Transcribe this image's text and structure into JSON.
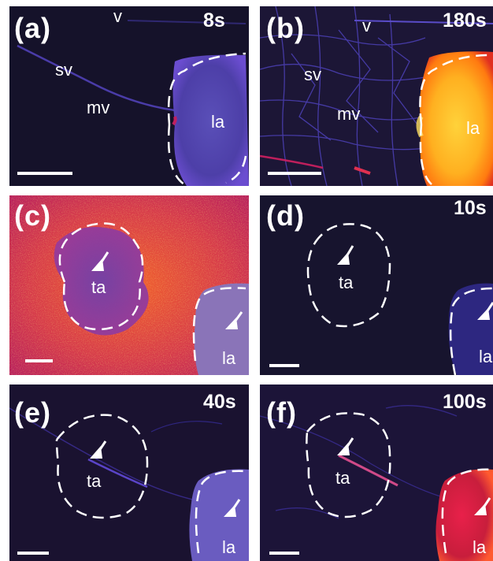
{
  "panels": {
    "a": {
      "label": "(a)",
      "time": "8s",
      "v": "v",
      "sv": "sv",
      "mv": "mv",
      "la": "la"
    },
    "b": {
      "label": "(b)",
      "time": "180s",
      "v": "v",
      "sv": "sv",
      "mv": "mv",
      "la": "la"
    },
    "c": {
      "label": "(c)",
      "ta": "ta",
      "la": "la"
    },
    "d": {
      "label": "(d)",
      "time": "10s",
      "ta": "ta",
      "la": "la"
    },
    "e": {
      "label": "(e)",
      "time": "40s",
      "ta": "ta",
      "la": "la"
    },
    "f": {
      "label": "(f)",
      "time": "100s",
      "ta": "ta",
      "la": "la"
    }
  },
  "colors": {
    "background_dark": "#15122a",
    "low_intensity": "#3a2f9a",
    "mid_intensity": "#c8207a",
    "high_intensity": "#ffb020",
    "annotation": "#ffffff"
  }
}
